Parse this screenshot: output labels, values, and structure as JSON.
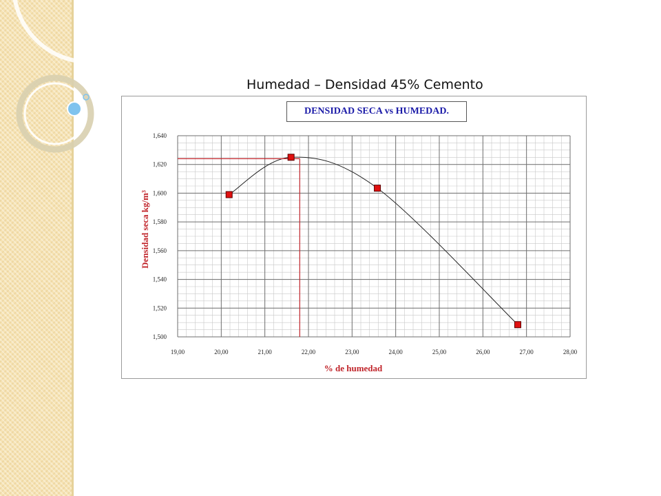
{
  "slide": {
    "title": "Humedad – Densidad 45% Cemento"
  },
  "theme": {
    "accent": "#c0242a",
    "title_color": "#1c1ca8",
    "marker_fill": "#e01010"
  },
  "chart_data": {
    "type": "scatter",
    "title": "DENSIDAD SECA vs HUMEDAD.",
    "xlabel": "% de humedad",
    "ylabel": "Densidad seca kg/m³",
    "xlim": [
      19,
      28
    ],
    "ylim": [
      1500,
      1640
    ],
    "x_tick_labels": [
      "19,00",
      "20,00",
      "21,00",
      "22,00",
      "23,00",
      "24,00",
      "25,00",
      "26,00",
      "27,00",
      "28,00"
    ],
    "y_tick_labels": [
      "1,640",
      "1,620",
      "1,600",
      "1,580",
      "1,560",
      "1,540",
      "1,520",
      "1,500"
    ],
    "grid": true,
    "legend": "none",
    "smooth_curve": true,
    "series": [
      {
        "x": [
          20.18,
          21.6,
          23.58,
          26.8
        ],
        "y": [
          1599,
          1625,
          1603.5,
          1508.5
        ]
      }
    ],
    "annotations": {
      "optimum_moisture": 21.8,
      "max_dry_density": 1624
    }
  }
}
